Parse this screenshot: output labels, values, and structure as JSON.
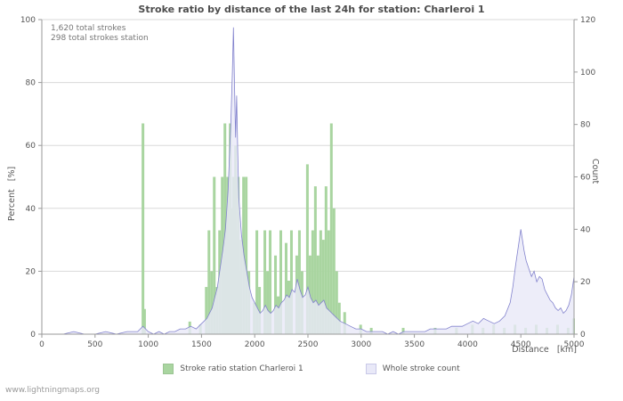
{
  "page": {
    "watermark": "www.lightningmaps.org"
  },
  "chart_data": {
    "type": "bar+area",
    "title": "Stroke ratio by distance of the last 24h for station: Charleroi 1",
    "annotations": [
      "1,620 total strokes",
      "298 total strokes station"
    ],
    "xlabel": "Distance   [km]",
    "x_range": [
      0,
      5000
    ],
    "x_ticks": [
      0,
      500,
      1000,
      1500,
      2000,
      2500,
      3000,
      3500,
      4000,
      4500,
      5000
    ],
    "y_left": {
      "label": "Percent   [%]",
      "range": [
        0,
        100
      ],
      "ticks": [
        0,
        20,
        40,
        60,
        80,
        100
      ]
    },
    "y_right": {
      "label": "Count",
      "range": [
        0,
        120
      ],
      "ticks": [
        0,
        20,
        40,
        60,
        80,
        100,
        120
      ]
    },
    "grid": "horizontal",
    "legend_position": "bottom",
    "series": [
      {
        "name": "Stroke ratio station Charleroi 1",
        "type": "bar",
        "axis": "left",
        "color": "#a9d5a0",
        "x": [
          950,
          965,
          1390,
          1490,
          1545,
          1570,
          1595,
          1620,
          1645,
          1670,
          1695,
          1705,
          1720,
          1735,
          1745,
          1760,
          1770,
          1785,
          1800,
          1810,
          1820,
          1835,
          1845,
          1855,
          1870,
          1895,
          1920,
          1945,
          1995,
          2020,
          2045,
          2095,
          2120,
          2145,
          2195,
          2220,
          2245,
          2295,
          2320,
          2345,
          2395,
          2420,
          2445,
          2495,
          2520,
          2545,
          2570,
          2595,
          2620,
          2645,
          2670,
          2695,
          2720,
          2745,
          2770,
          2795,
          2845,
          2995,
          3095,
          3395,
          3695,
          3895,
          4045,
          4145,
          4245,
          4345,
          4445,
          4545,
          4645,
          4745,
          4845,
          4945,
          4995
        ],
        "values": [
          67,
          8,
          4,
          3,
          15,
          33,
          20,
          50,
          15,
          33,
          50,
          25,
          67,
          33,
          50,
          30,
          67,
          40,
          50,
          25,
          60,
          33,
          50,
          20,
          30,
          50,
          50,
          20,
          10,
          33,
          15,
          33,
          20,
          33,
          25,
          12,
          33,
          29,
          17,
          33,
          25,
          33,
          20,
          54,
          25,
          33,
          47,
          25,
          33,
          30,
          47,
          33,
          67,
          40,
          20,
          10,
          7,
          3,
          2,
          2,
          2,
          2,
          3,
          2,
          3,
          2,
          3,
          2,
          3,
          2,
          3,
          2,
          5
        ]
      },
      {
        "name": "Whole stroke count",
        "type": "area",
        "axis": "right",
        "color": "#8282cd",
        "fill": "#e9e9f8",
        "x": [
          0,
          100,
          200,
          300,
          400,
          500,
          600,
          700,
          800,
          900,
          950,
          1000,
          1050,
          1100,
          1150,
          1200,
          1250,
          1300,
          1350,
          1400,
          1450,
          1500,
          1550,
          1600,
          1625,
          1650,
          1675,
          1700,
          1725,
          1750,
          1775,
          1790,
          1800,
          1810,
          1820,
          1830,
          1840,
          1850,
          1875,
          1900,
          1925,
          1950,
          1975,
          2000,
          2025,
          2050,
          2075,
          2100,
          2125,
          2150,
          2175,
          2200,
          2225,
          2250,
          2275,
          2300,
          2325,
          2350,
          2375,
          2400,
          2425,
          2450,
          2475,
          2500,
          2525,
          2550,
          2575,
          2600,
          2625,
          2650,
          2675,
          2700,
          2725,
          2750,
          2775,
          2800,
          2850,
          2900,
          2950,
          3000,
          3050,
          3100,
          3150,
          3200,
          3250,
          3300,
          3350,
          3400,
          3450,
          3500,
          3550,
          3600,
          3650,
          3700,
          3750,
          3800,
          3850,
          3900,
          3950,
          4000,
          4050,
          4100,
          4150,
          4200,
          4250,
          4300,
          4350,
          4400,
          4425,
          4450,
          4475,
          4500,
          4515,
          4530,
          4550,
          4575,
          4600,
          4625,
          4650,
          4675,
          4700,
          4725,
          4750,
          4775,
          4800,
          4825,
          4850,
          4875,
          4900,
          4925,
          4950,
          4975,
          5000
        ],
        "values": [
          0,
          0,
          0,
          1,
          0,
          0,
          1,
          0,
          1,
          1,
          3,
          1,
          0,
          1,
          0,
          1,
          1,
          2,
          2,
          3,
          2,
          4,
          6,
          10,
          14,
          18,
          25,
          32,
          40,
          55,
          80,
          100,
          117,
          95,
          75,
          91,
          70,
          52,
          38,
          30,
          24,
          18,
          14,
          12,
          10,
          8,
          9,
          11,
          9,
          8,
          9,
          11,
          10,
          12,
          13,
          15,
          14,
          17,
          16,
          21,
          17,
          14,
          15,
          18,
          14,
          12,
          13,
          11,
          12,
          13,
          10,
          9,
          8,
          7,
          6,
          5,
          4,
          3,
          2,
          2,
          1,
          1,
          1,
          1,
          0,
          1,
          0,
          1,
          1,
          1,
          1,
          1,
          2,
          2,
          2,
          2,
          3,
          3,
          3,
          4,
          5,
          4,
          6,
          5,
          4,
          5,
          7,
          12,
          18,
          26,
          33,
          40,
          36,
          32,
          28,
          25,
          22,
          24,
          20,
          22,
          21,
          17,
          15,
          13,
          12,
          10,
          9,
          10,
          8,
          9,
          11,
          15,
          22
        ]
      }
    ]
  }
}
